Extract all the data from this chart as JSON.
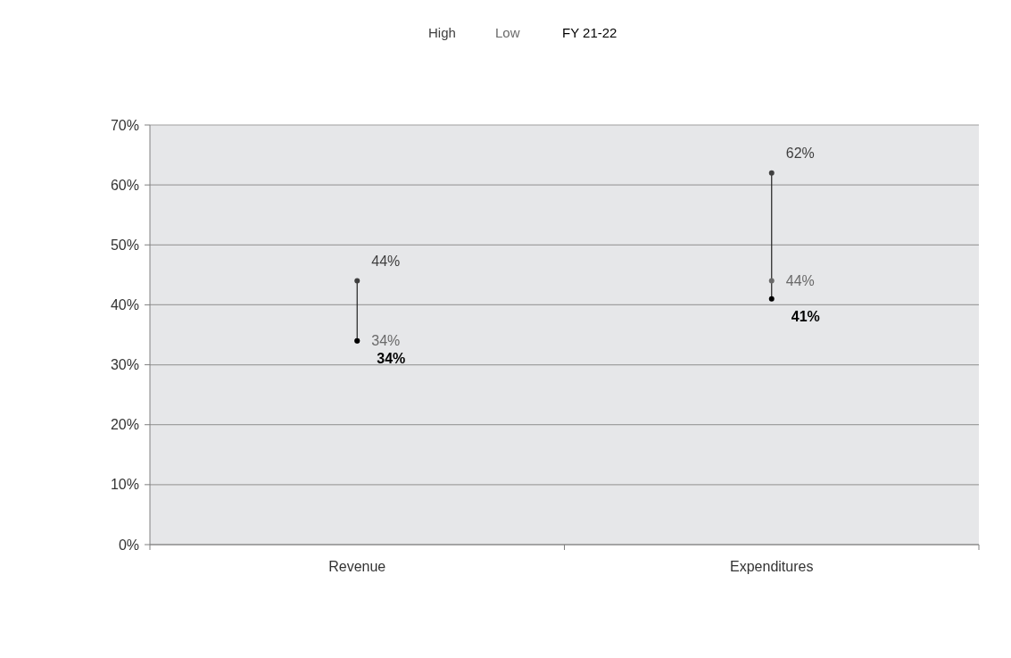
{
  "chart_data": {
    "type": "scatter",
    "categories": [
      "Revenue",
      "Expenditures"
    ],
    "series": [
      {
        "name": "High",
        "color": "#404040",
        "values": [
          44,
          62
        ],
        "value_labels": [
          "44%",
          "62%"
        ]
      },
      {
        "name": "Low",
        "color": "#6a6a6a",
        "values": [
          34,
          44
        ],
        "value_labels": [
          "34%",
          "44%"
        ]
      },
      {
        "name": "FY 21-22",
        "color": "#000000",
        "values": [
          34,
          41
        ],
        "value_labels": [
          "34%",
          "41%"
        ]
      }
    ],
    "ylim": [
      0,
      70
    ],
    "yticks": [
      {
        "value": 0,
        "label": "0%"
      },
      {
        "value": 10,
        "label": "10%"
      },
      {
        "value": 20,
        "label": "20%"
      },
      {
        "value": 30,
        "label": "30%"
      },
      {
        "value": 40,
        "label": "40%"
      },
      {
        "value": 50,
        "label": "50%"
      },
      {
        "value": 60,
        "label": "60%"
      },
      {
        "value": 70,
        "label": "70%"
      }
    ],
    "grid": "y",
    "marker": "circle"
  }
}
